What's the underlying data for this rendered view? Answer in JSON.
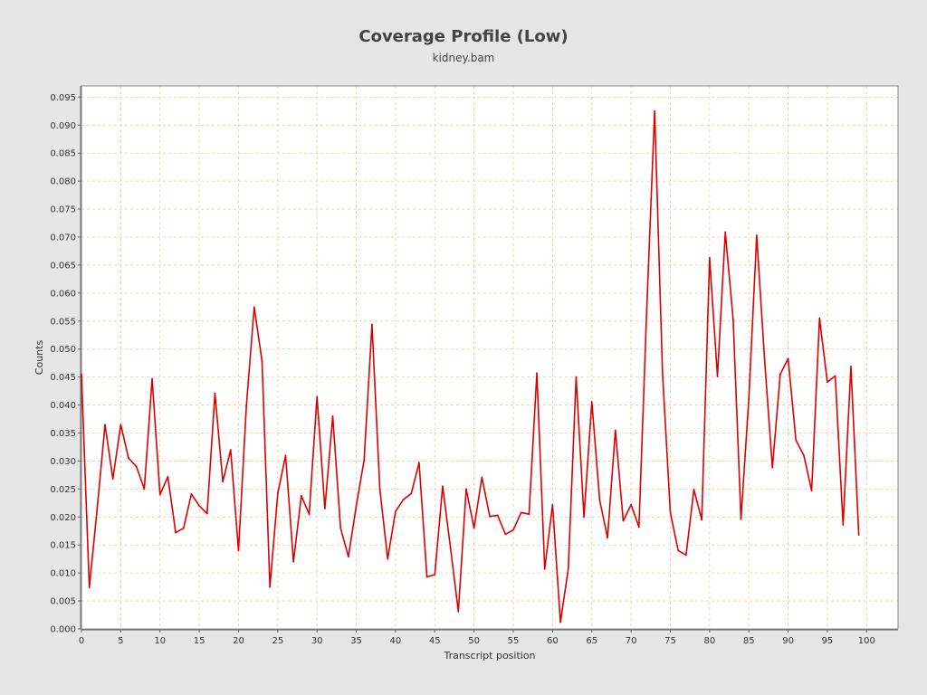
{
  "chart_data": {
    "type": "line",
    "title": "Coverage Profile (Low)",
    "subtitle": "kidney.bam",
    "xlabel": "Transcript position",
    "ylabel": "Counts",
    "xlim": [
      0,
      104
    ],
    "ylim": [
      0,
      0.097
    ],
    "xticks": [
      0,
      5,
      10,
      15,
      20,
      25,
      30,
      35,
      40,
      45,
      50,
      55,
      60,
      65,
      70,
      75,
      80,
      85,
      90,
      95,
      100
    ],
    "yticks": [
      "0.000",
      "0.005",
      "0.010",
      "0.015",
      "0.020",
      "0.025",
      "0.030",
      "0.035",
      "0.040",
      "0.045",
      "0.050",
      "0.055",
      "0.060",
      "0.065",
      "0.070",
      "0.075",
      "0.080",
      "0.085",
      "0.090",
      "0.095"
    ],
    "grid": true,
    "colors": {
      "line": "#dd0000",
      "grid": "#f0c8a0",
      "plot_bg": "#ffffff",
      "page_bg": "#e6e6e6"
    },
    "series": [
      {
        "x": [
          0,
          1,
          2,
          3,
          4,
          5,
          6,
          7,
          8,
          9,
          10,
          11,
          12,
          13,
          14,
          15,
          16,
          17,
          18,
          19,
          20,
          21,
          22,
          23,
          24,
          25,
          26,
          27,
          28,
          29,
          30,
          31,
          32,
          33,
          34,
          35,
          36,
          37,
          38,
          39,
          40,
          41,
          42,
          43,
          44,
          45,
          46,
          47,
          48,
          49,
          50,
          51,
          52,
          53,
          54,
          55,
          56,
          57,
          58,
          59,
          60,
          61,
          62,
          63,
          64,
          65,
          66,
          67,
          68,
          69,
          70,
          71,
          72,
          73,
          74,
          75,
          76,
          77,
          78,
          79,
          80,
          81,
          82,
          83,
          84,
          85,
          86,
          87,
          88,
          89,
          90,
          91,
          92,
          93,
          94,
          95,
          96,
          97,
          98,
          99
        ],
        "values": [
          0.0455,
          0.0074,
          0.0215,
          0.0365,
          0.0268,
          0.0365,
          0.0305,
          0.029,
          0.025,
          0.0447,
          0.024,
          0.0272,
          0.0172,
          0.018,
          0.0241,
          0.022,
          0.0206,
          0.0421,
          0.0263,
          0.032,
          0.014,
          0.0398,
          0.0575,
          0.0478,
          0.0075,
          0.0242,
          0.031,
          0.012,
          0.0238,
          0.0205,
          0.0415,
          0.0215,
          0.038,
          0.018,
          0.0129,
          0.022,
          0.0302,
          0.0544,
          0.025,
          0.0125,
          0.021,
          0.0231,
          0.0242,
          0.0297,
          0.0093,
          0.0097,
          0.0255,
          0.0145,
          0.0031,
          0.025,
          0.018,
          0.0271,
          0.0201,
          0.0203,
          0.0169,
          0.0177,
          0.0208,
          0.0205,
          0.0457,
          0.0107,
          0.0222,
          0.0012,
          0.0107,
          0.045,
          0.02,
          0.0406,
          0.023,
          0.0163,
          0.0355,
          0.0193,
          0.0222,
          0.0182,
          0.0573,
          0.0925,
          0.0458,
          0.0208,
          0.014,
          0.0132,
          0.0249,
          0.0195,
          0.0663,
          0.0451,
          0.0709,
          0.0553,
          0.0196,
          0.0412,
          0.0703,
          0.0482,
          0.0288,
          0.0455,
          0.0483,
          0.0337,
          0.031,
          0.0247,
          0.0555,
          0.0441,
          0.0452,
          0.0186,
          0.0469,
          0.0168
        ]
      }
    ]
  }
}
